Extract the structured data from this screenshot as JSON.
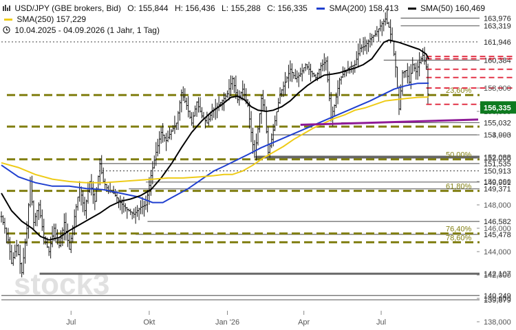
{
  "header": {
    "instrument": "USD/JPY (GBE brokers, Bid)",
    "open_label": "O:",
    "open": "155,844",
    "high_label": "H:",
    "high": "156,436",
    "low_label": "L:",
    "low": "155,288",
    "close_label": "C:",
    "close": "156,335",
    "sma200_label": "SMA(200)",
    "sma200": "158,413",
    "sma50_label": "SMA(50)",
    "sma50": "160,469",
    "sma250_label": "SMA(250)",
    "sma250": "157,229",
    "period": "10.04.2025 - 04.09.2026  (1 Jahr, 1 Tag)"
  },
  "watermark": "stock3",
  "colors": {
    "candle": "#111111",
    "sma200": "#1f3fcf",
    "sma50": "#000000",
    "sma250": "#eecb17",
    "olive": "#807e10",
    "red": "#e23246",
    "trend": "#8e1a96",
    "grey": "#666666",
    "price_badge": "#0d7a1f",
    "axis_text": "#555555"
  },
  "chart_data": {
    "type": "line",
    "title": "USD/JPY (GBE brokers, Bid)",
    "y_axis": {
      "min": 138.0,
      "max": 164.4,
      "ticks": [
        138,
        140,
        142,
        144,
        146,
        148,
        150,
        152,
        154,
        156,
        158
      ],
      "tick_labels": [
        "138,000",
        "140,000",
        "142,000",
        "144,000",
        "146,000",
        "148,000",
        "150,000",
        "152,000",
        "154,000",
        "156,000",
        "158,000"
      ],
      "side": "right"
    },
    "x_axis": {
      "ticks": [
        {
          "label": "Jul",
          "day": 82
        },
        {
          "label": "Okt",
          "day": 174
        },
        {
          "label": "Jan '26",
          "day": 266
        },
        {
          "label": "Apr",
          "day": 356
        },
        {
          "label": "Jul",
          "day": 447
        }
      ],
      "start_day": 0,
      "end_day": 512
    },
    "price": {
      "name": "USD/JPY",
      "style": "ohlc",
      "points": [
        [
          0,
          147.0
        ],
        [
          8,
          145.0
        ],
        [
          12,
          143.0
        ],
        [
          18,
          144.5
        ],
        [
          24,
          142.2
        ],
        [
          30,
          146.0
        ],
        [
          34,
          150.0
        ],
        [
          38,
          146.5
        ],
        [
          44,
          148.0
        ],
        [
          50,
          145.2
        ],
        [
          56,
          144.0
        ],
        [
          62,
          146.0
        ],
        [
          68,
          144.5
        ],
        [
          74,
          146.5
        ],
        [
          80,
          144.2
        ],
        [
          86,
          147.0
        ],
        [
          92,
          149.5
        ],
        [
          98,
          147.5
        ],
        [
          104,
          150.0
        ],
        [
          110,
          148.3
        ],
        [
          116,
          151.5
        ],
        [
          120,
          150.0
        ],
        [
          126,
          149.2
        ],
        [
          132,
          149.0
        ],
        [
          140,
          148.2
        ],
        [
          148,
          147.6
        ],
        [
          156,
          147.2
        ],
        [
          164,
          147.8
        ],
        [
          170,
          148.0
        ],
        [
          176,
          150.5
        ],
        [
          182,
          152.5
        ],
        [
          188,
          154.2
        ],
        [
          194,
          153.5
        ],
        [
          200,
          154.3
        ],
        [
          206,
          155.0
        ],
        [
          212,
          157.6
        ],
        [
          218,
          156.5
        ],
        [
          224,
          155.0
        ],
        [
          230,
          156.8
        ],
        [
          236,
          155.6
        ],
        [
          242,
          155.0
        ],
        [
          248,
          156.0
        ],
        [
          254,
          156.4
        ],
        [
          260,
          156.9
        ],
        [
          266,
          157.5
        ],
        [
          272,
          158.8
        ],
        [
          278,
          157.0
        ],
        [
          284,
          157.9
        ],
        [
          290,
          156.5
        ],
        [
          294,
          154.2
        ],
        [
          298,
          152.1
        ],
        [
          302,
          154.5
        ],
        [
          306,
          157.1
        ],
        [
          310,
          156.0
        ],
        [
          314,
          152.5
        ],
        [
          318,
          153.6
        ],
        [
          322,
          155.2
        ],
        [
          328,
          157.5
        ],
        [
          334,
          158.5
        ],
        [
          340,
          159.6
        ],
        [
          346,
          158.8
        ],
        [
          352,
          159.2
        ],
        [
          358,
          160.0
        ],
        [
          364,
          159.4
        ],
        [
          370,
          158.9
        ],
        [
          376,
          159.9
        ],
        [
          382,
          160.3
        ],
        [
          388,
          155.5
        ],
        [
          392,
          156.5
        ],
        [
          398,
          158.7
        ],
        [
          404,
          159.4
        ],
        [
          410,
          159.8
        ],
        [
          416,
          160.0
        ],
        [
          422,
          161.4
        ],
        [
          428,
          161.6
        ],
        [
          434,
          162.2
        ],
        [
          440,
          162.6
        ],
        [
          446,
          163.3
        ],
        [
          452,
          163.9
        ],
        [
          456,
          163.2
        ],
        [
          460,
          162.0
        ],
        [
          464,
          159.8
        ],
        [
          468,
          156.2
        ],
        [
          472,
          159.3
        ],
        [
          476,
          159.5
        ],
        [
          480,
          158.5
        ],
        [
          484,
          160.0
        ],
        [
          488,
          159.4
        ],
        [
          492,
          160.2
        ],
        [
          496,
          160.8
        ],
        [
          500,
          159.8
        ],
        [
          503,
          156.335
        ]
      ]
    },
    "series": [
      {
        "name": "SMA(200)",
        "value": "158,413",
        "values": [
          [
            0,
            151.4
          ],
          [
            20,
            150.4
          ],
          [
            40,
            149.9
          ],
          [
            60,
            149.6
          ],
          [
            80,
            149.6
          ],
          [
            100,
            149.4
          ],
          [
            120,
            149.3
          ],
          [
            140,
            149.0
          ],
          [
            160,
            148.7
          ],
          [
            178,
            148.2
          ],
          [
            190,
            148.2
          ],
          [
            200,
            148.6
          ],
          [
            210,
            149.0
          ],
          [
            220,
            149.4
          ],
          [
            230,
            149.9
          ],
          [
            240,
            150.4
          ],
          [
            250,
            150.9
          ],
          [
            262,
            151.3
          ],
          [
            276,
            151.8
          ],
          [
            290,
            152.3
          ],
          [
            306,
            152.9
          ],
          [
            322,
            153.4
          ],
          [
            338,
            153.9
          ],
          [
            354,
            154.4
          ],
          [
            370,
            154.9
          ],
          [
            386,
            155.4
          ],
          [
            402,
            155.9
          ],
          [
            418,
            156.4
          ],
          [
            434,
            156.9
          ],
          [
            448,
            157.4
          ],
          [
            462,
            157.9
          ],
          [
            476,
            158.2
          ],
          [
            490,
            158.4
          ],
          [
            503,
            158.413
          ]
        ]
      },
      {
        "name": "SMA(50)",
        "value": "160,469",
        "values": [
          [
            0,
            149.0
          ],
          [
            12,
            147.5
          ],
          [
            24,
            146.6
          ],
          [
            36,
            146.0
          ],
          [
            46,
            145.3
          ],
          [
            56,
            145.0
          ],
          [
            68,
            145.2
          ],
          [
            80,
            145.8
          ],
          [
            92,
            146.3
          ],
          [
            104,
            146.8
          ],
          [
            116,
            147.3
          ],
          [
            128,
            147.9
          ],
          [
            140,
            148.3
          ],
          [
            152,
            148.5
          ],
          [
            164,
            148.8
          ],
          [
            176,
            149.3
          ],
          [
            188,
            150.3
          ],
          [
            200,
            151.5
          ],
          [
            212,
            152.9
          ],
          [
            224,
            154.2
          ],
          [
            236,
            155.2
          ],
          [
            248,
            156.0
          ],
          [
            260,
            156.6
          ],
          [
            270,
            157.2
          ],
          [
            278,
            157.3
          ],
          [
            286,
            157.0
          ],
          [
            294,
            156.4
          ],
          [
            302,
            156.1
          ],
          [
            312,
            156.0
          ],
          [
            320,
            156.1
          ],
          [
            330,
            156.4
          ],
          [
            340,
            156.9
          ],
          [
            350,
            157.6
          ],
          [
            360,
            158.2
          ],
          [
            370,
            158.7
          ],
          [
            380,
            159.1
          ],
          [
            390,
            159.2
          ],
          [
            398,
            159.3
          ],
          [
            406,
            159.5
          ],
          [
            416,
            159.7
          ],
          [
            426,
            160.0
          ],
          [
            436,
            160.5
          ],
          [
            444,
            161.3
          ],
          [
            450,
            161.9
          ],
          [
            456,
            162.1
          ],
          [
            462,
            162.0
          ],
          [
            468,
            161.9
          ],
          [
            476,
            161.7
          ],
          [
            484,
            161.5
          ],
          [
            492,
            161.3
          ],
          [
            500,
            160.9
          ],
          [
            503,
            160.469
          ]
        ]
      },
      {
        "name": "SMA(250)",
        "value": "157,229",
        "values": [
          [
            0,
            151.6
          ],
          [
            20,
            151.2
          ],
          [
            40,
            150.6
          ],
          [
            60,
            150.2
          ],
          [
            80,
            150.0
          ],
          [
            100,
            149.9
          ],
          [
            120,
            149.9
          ],
          [
            140,
            150.0
          ],
          [
            160,
            150.1
          ],
          [
            178,
            150.2
          ],
          [
            196,
            150.3
          ],
          [
            214,
            150.3
          ],
          [
            234,
            150.4
          ],
          [
            250,
            150.5
          ],
          [
            262,
            150.6
          ],
          [
            272,
            150.6
          ],
          [
            284,
            150.9
          ],
          [
            296,
            151.4
          ],
          [
            308,
            152.0
          ],
          [
            320,
            152.5
          ],
          [
            332,
            153.0
          ],
          [
            344,
            153.6
          ],
          [
            356,
            154.1
          ],
          [
            368,
            154.6
          ],
          [
            380,
            155.0
          ],
          [
            392,
            155.4
          ],
          [
            404,
            155.7
          ],
          [
            416,
            156.1
          ],
          [
            428,
            156.3
          ],
          [
            440,
            156.6
          ],
          [
            452,
            156.9
          ],
          [
            464,
            157.0
          ],
          [
            476,
            157.1
          ],
          [
            490,
            157.2
          ],
          [
            503,
            157.229
          ]
        ]
      }
    ],
    "levels": [
      {
        "value": 163.976,
        "label": "163,976",
        "style": "grey"
      },
      {
        "value": 163.319,
        "label": "163,319",
        "style": "grey"
      },
      {
        "value": 161.946,
        "label": "161,946",
        "style": "grey-dotted"
      },
      {
        "value": 160.384,
        "label": "160,384",
        "style": "grey"
      },
      {
        "value": 155.032,
        "label": "155,032",
        "style": "grey"
      },
      {
        "value": 153.993,
        "label": "153,993",
        "style": "grey"
      },
      {
        "value": 152.088,
        "label": "152,088",
        "style": "grey"
      },
      {
        "value": 151.535,
        "label": "151,535",
        "style": "grey"
      },
      {
        "value": 150.913,
        "label": "150,913",
        "style": "grey-dotted"
      },
      {
        "value": 149.951,
        "label": "149,951",
        "style": "grey"
      },
      {
        "value": 149.371,
        "label": "149,371",
        "style": "grey"
      },
      {
        "value": 146.582,
        "label": "146,582",
        "style": "grey"
      },
      {
        "value": 145.478,
        "label": "145,478",
        "style": "grey"
      },
      {
        "value": 142.107,
        "label": "142,107",
        "style": "grey"
      },
      {
        "value": 140.249,
        "label": "140,249",
        "style": "grey"
      },
      {
        "value": 139.879,
        "label": "139,879",
        "style": "grey"
      }
    ],
    "fib_levels": [
      {
        "value": 157.4,
        "label": "23,60%"
      },
      {
        "value": 154.7,
        "label": ""
      },
      {
        "value": 151.9,
        "label": "50,00%"
      },
      {
        "value": 149.2,
        "label": "61,80%"
      },
      {
        "value": 145.55,
        "label": "76,40%"
      },
      {
        "value": 144.8,
        "label": "78,60%"
      }
    ],
    "resistance_red": [
      160.7,
      160.5,
      159.6,
      158.9,
      158.0,
      156.6
    ],
    "trendline": {
      "from": [
        352,
        154.85
      ],
      "to": [
        512,
        155.3
      ]
    },
    "current_price": {
      "value": 156.335,
      "label": "156,335"
    }
  }
}
